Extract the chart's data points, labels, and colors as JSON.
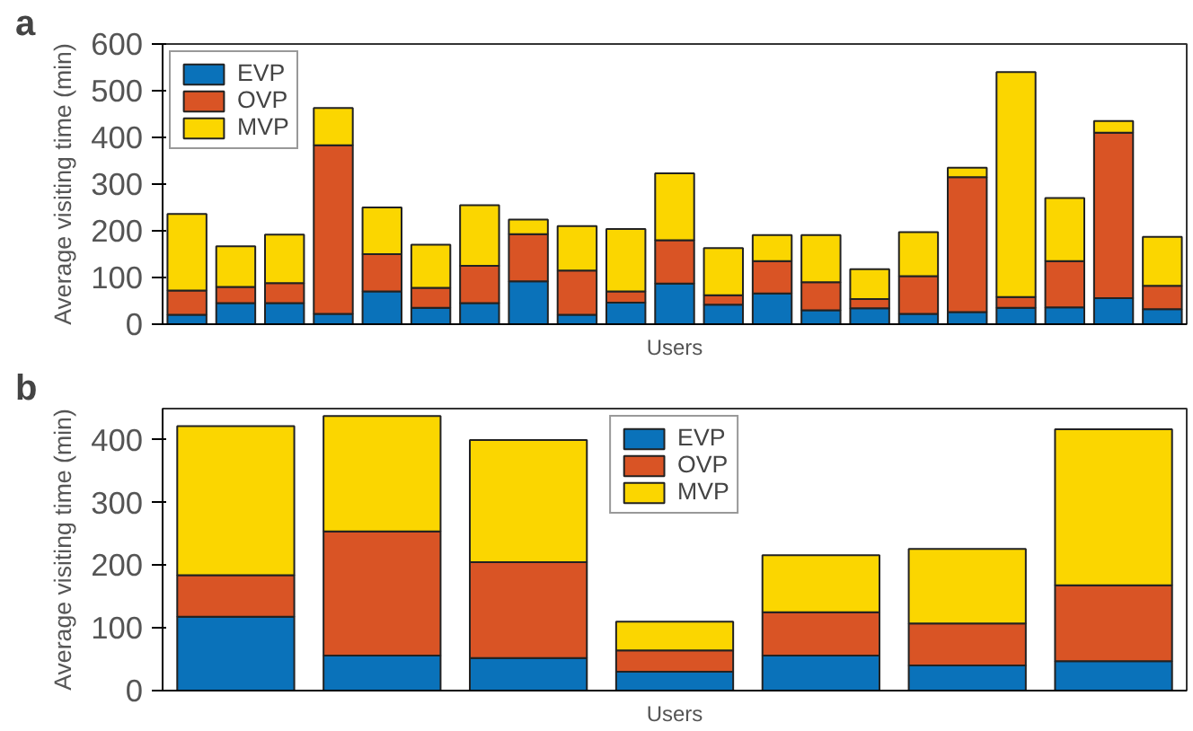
{
  "chart_data": [
    {
      "type": "bar",
      "title": "a",
      "xlabel": "Users",
      "ylabel": "Average visiting time (min)",
      "stacked": true,
      "categories": [
        null,
        null,
        null,
        null,
        null,
        null,
        null,
        null,
        null,
        null,
        null,
        null,
        null,
        null,
        null,
        null,
        null,
        null,
        null,
        null,
        null
      ],
      "series": [
        {
          "name": "EVP",
          "color": "#0a72ba",
          "values": [
            20,
            45,
            45,
            22,
            70,
            35,
            45,
            92,
            20,
            46,
            87,
            42,
            66,
            30,
            34,
            22,
            26,
            35,
            36,
            56,
            32
          ]
        },
        {
          "name": "OVP",
          "color": "#d95425",
          "values": [
            52,
            35,
            43,
            361,
            80,
            43,
            80,
            101,
            95,
            24,
            93,
            20,
            69,
            60,
            20,
            81,
            289,
            23,
            99,
            354,
            50
          ]
        },
        {
          "name": "MVP",
          "color": "#fbd600",
          "values": [
            164,
            87,
            104,
            80,
            100,
            92,
            130,
            31,
            95,
            134,
            143,
            101,
            56,
            101,
            64,
            94,
            20,
            482,
            135,
            25,
            105
          ]
        }
      ],
      "ylim": [
        0,
        600
      ],
      "yticks": [
        0,
        100,
        200,
        300,
        400,
        500,
        600
      ],
      "grid": false,
      "legend": "top left",
      "tick_labels": "y"
    },
    {
      "type": "bar",
      "title": "b",
      "xlabel": "Users",
      "ylabel": "Average visiting time (min)",
      "stacked": true,
      "categories": [
        null,
        null,
        null,
        null,
        null,
        null,
        null
      ],
      "series": [
        {
          "name": "EVP",
          "color": "#0a72ba",
          "values": [
            118,
            56,
            52,
            30,
            56,
            40,
            47
          ]
        },
        {
          "name": "OVP",
          "color": "#d95425",
          "values": [
            66,
            198,
            153,
            34,
            69,
            67,
            121
          ]
        },
        {
          "name": "MVP",
          "color": "#fbd600",
          "values": [
            238,
            184,
            195,
            46,
            91,
            119,
            249
          ]
        }
      ],
      "ylim": [
        0,
        450
      ],
      "yticks": [
        0,
        100,
        200,
        300,
        400
      ],
      "grid": false,
      "legend": "top",
      "tick_labels": "y"
    }
  ]
}
